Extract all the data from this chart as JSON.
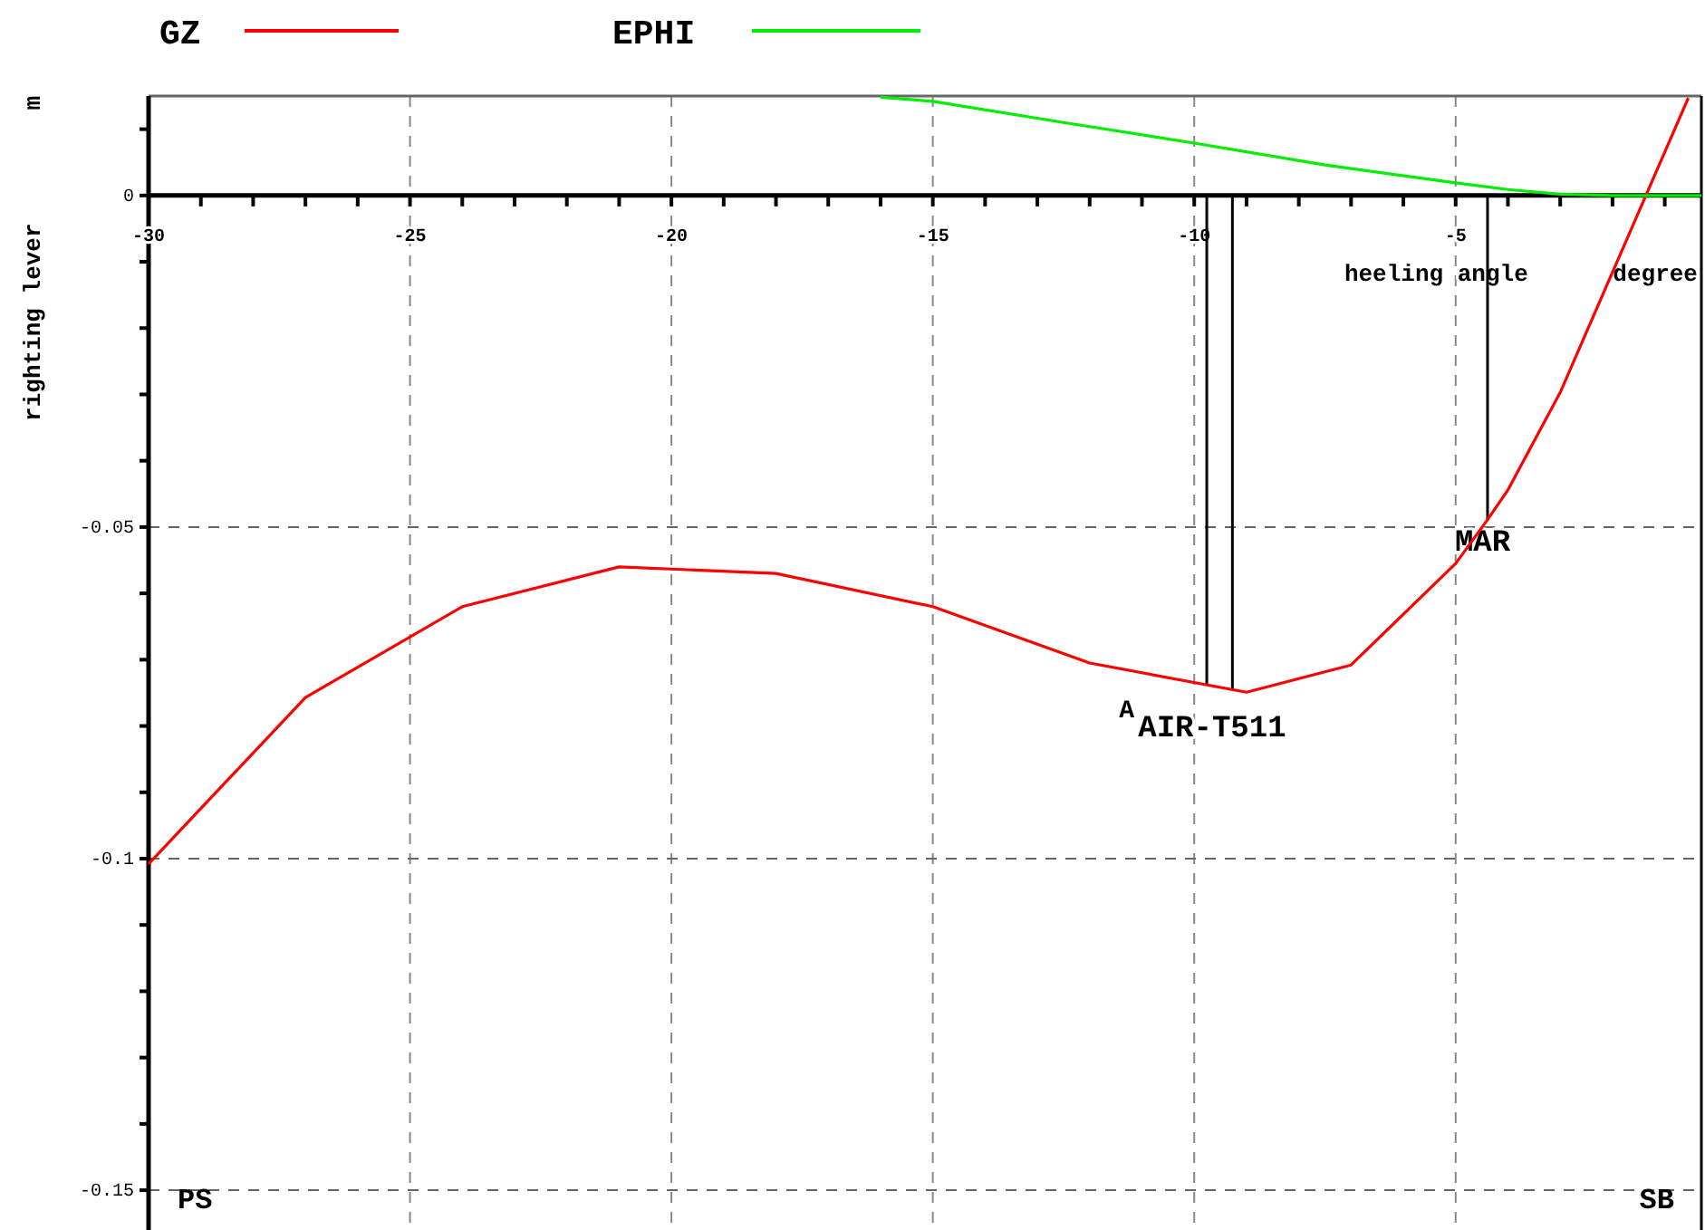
{
  "chart_data": {
    "type": "line",
    "xlabel": "heeling angle      degree",
    "ylabel": "righting lever        m",
    "x": [
      -30,
      -27,
      -24,
      -21,
      -18,
      -15,
      -12,
      -9,
      -7,
      -5,
      -4.4,
      -4,
      -3,
      -0.55
    ],
    "series": [
      {
        "name": "GZ",
        "color": "#ff0000",
        "values": [
          -0.1008,
          -0.0757,
          -0.062,
          -0.056,
          -0.057,
          -0.062,
          -0.0705,
          -0.0749,
          -0.0708,
          -0.0555,
          -0.049,
          -0.0444,
          -0.0297,
          0.0147
        ]
      },
      {
        "name": "EPHI",
        "color": "#00ee00",
        "x": [
          -16,
          -15,
          -12.5,
          -10,
          -7.5,
          -5,
          -4,
          -3,
          -2,
          -0.3
        ],
        "values": [
          0.0148,
          0.0142,
          0.011,
          0.0079,
          0.0046,
          0.0019,
          0.0009,
          0.0002,
          0,
          0
        ]
      }
    ],
    "xlim": [
      -30,
      -0.3
    ],
    "ylim": [
      -0.156,
      0.015
    ],
    "xticks": [
      -30,
      {
        "value": -29,
        "label": null
      },
      {
        "value": -28,
        "label": null
      },
      {
        "value": -27,
        "label": null
      },
      {
        "value": -26,
        "label": null
      },
      -25,
      {
        "value": -24,
        "label": null
      },
      {
        "value": -23,
        "label": null
      },
      {
        "value": -22,
        "label": null
      },
      {
        "value": -21,
        "label": null
      },
      -20,
      {
        "value": -19,
        "label": null
      },
      {
        "value": -18,
        "label": null
      },
      {
        "value": -17,
        "label": null
      },
      {
        "value": -16,
        "label": null
      },
      -15,
      {
        "value": -14,
        "label": null
      },
      {
        "value": -13,
        "label": null
      },
      {
        "value": -12,
        "label": null
      },
      {
        "value": -11,
        "label": null
      },
      -10,
      {
        "value": -9,
        "label": null
      },
      {
        "value": -8,
        "label": null
      },
      {
        "value": -7,
        "label": null
      },
      {
        "value": -6,
        "label": null
      },
      -5,
      {
        "value": -4,
        "label": null
      },
      {
        "value": -3,
        "label": null
      },
      {
        "value": -2,
        "label": null
      },
      {
        "value": -1,
        "label": null
      }
    ],
    "yticks": [
      {
        "value": 0.01,
        "label": null
      },
      0,
      {
        "value": -0.01,
        "label": null
      },
      {
        "value": -0.02,
        "label": null
      },
      {
        "value": -0.03,
        "label": null
      },
      {
        "value": -0.04,
        "label": null
      },
      -0.05,
      {
        "value": -0.06,
        "label": null
      },
      {
        "value": -0.07,
        "label": null
      },
      {
        "value": -0.08,
        "label": null
      },
      {
        "value": -0.09,
        "label": null
      },
      -0.1,
      {
        "value": -0.11,
        "label": null
      },
      {
        "value": -0.12,
        "label": null
      },
      {
        "value": -0.13,
        "label": null
      },
      {
        "value": -0.14,
        "label": null
      },
      -0.15
    ],
    "grid": true,
    "legend": "top left",
    "line_style": "solid",
    "ref_lines": [
      {
        "axis": "x",
        "value": -9.76,
        "label": "A"
      },
      {
        "axis": "x",
        "value": -9.27,
        "label": "AIR-T511"
      },
      {
        "axis": "x",
        "value": -4.39,
        "label": "MAR"
      }
    ],
    "annotations": [
      "PS",
      "SB"
    ]
  }
}
